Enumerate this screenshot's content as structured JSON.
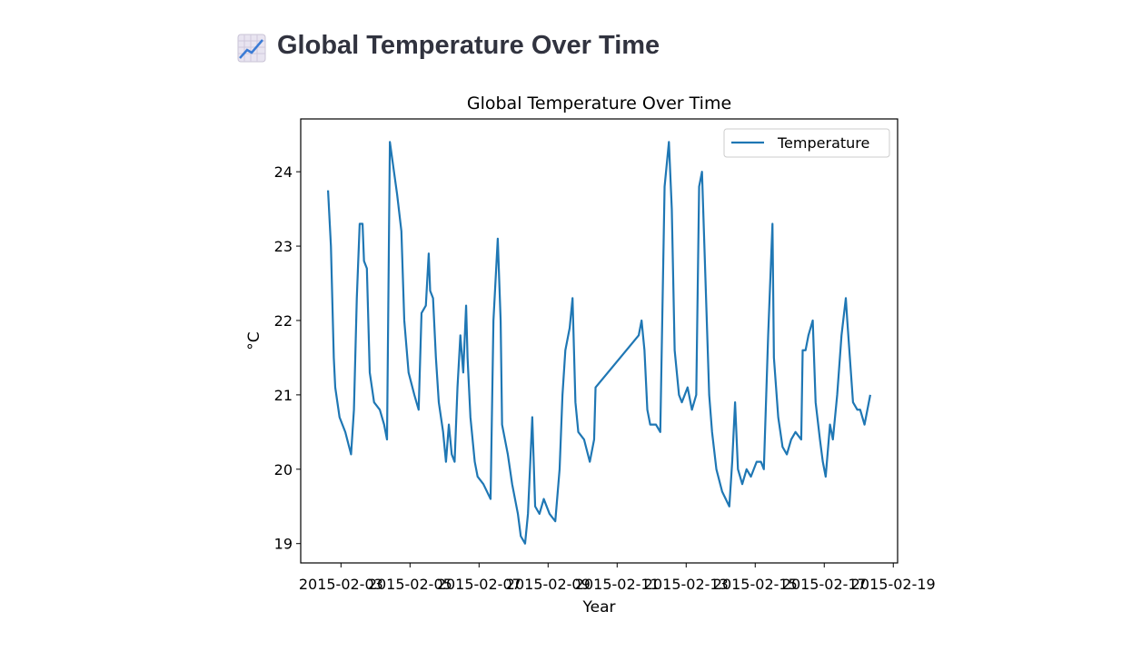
{
  "header": {
    "title": "Global Temperature Over Time"
  },
  "chart_data": {
    "type": "line",
    "title": "Global Temperature Over Time",
    "x_label": "Year",
    "y_label": "°C",
    "x": [
      "2015-02-02 15:00",
      "2015-02-02 17:00",
      "2015-02-02 19:00",
      "2015-02-02 20:00",
      "2015-02-02 23:00",
      "2015-02-03 03:00",
      "2015-02-03 07:00",
      "2015-02-03 09:00",
      "2015-02-03 11:00",
      "2015-02-03 13:00",
      "2015-02-03 15:00",
      "2015-02-03 16:00",
      "2015-02-03 18:00",
      "2015-02-03 20:00",
      "2015-02-03 23:00",
      "2015-02-04 03:00",
      "2015-02-04 06:00",
      "2015-02-04 08:00",
      "2015-02-04 10:00",
      "2015-02-04 15:00",
      "2015-02-04 18:00",
      "2015-02-04 20:00",
      "2015-02-04 23:00",
      "2015-02-05 03:00",
      "2015-02-05 06:00",
      "2015-02-05 08:00",
      "2015-02-05 11:00",
      "2015-02-05 13:00",
      "2015-02-05 14:00",
      "2015-02-05 16:00",
      "2015-02-05 18:00",
      "2015-02-05 20:00",
      "2015-02-05 23:00",
      "2015-02-06 01:00",
      "2015-02-06 03:00",
      "2015-02-06 05:00",
      "2015-02-06 07:00",
      "2015-02-06 09:00",
      "2015-02-06 11:00",
      "2015-02-06 13:00",
      "2015-02-06 15:00",
      "2015-02-06 16:00",
      "2015-02-06 18:00",
      "2015-02-06 21:00",
      "2015-02-06 23:00",
      "2015-02-07 03:00",
      "2015-02-07 08:00",
      "2015-02-07 10:00",
      "2015-02-07 13:00",
      "2015-02-07 15:00",
      "2015-02-07 16:00",
      "2015-02-07 20:00",
      "2015-02-07 23:00",
      "2015-02-08 03:00",
      "2015-02-08 05:00",
      "2015-02-08 08:00",
      "2015-02-08 10:00",
      "2015-02-08 13:00",
      "2015-02-08 15:00",
      "2015-02-08 18:00",
      "2015-02-08 21:00",
      "2015-02-09 01:00",
      "2015-02-09 05:00",
      "2015-02-09 08:00",
      "2015-02-09 10:00",
      "2015-02-09 12:00",
      "2015-02-09 15:00",
      "2015-02-09 17:00",
      "2015-02-09 19:00",
      "2015-02-09 21:00",
      "2015-02-10 01:00",
      "2015-02-10 05:00",
      "2015-02-10 08:00",
      "2015-02-10 09:00",
      "2015-02-11 15:00",
      "2015-02-11 17:00",
      "2015-02-11 19:00",
      "2015-02-11 21:00",
      "2015-02-11 23:00",
      "2015-02-12 03:00",
      "2015-02-12 06:00",
      "2015-02-12 09:00",
      "2015-02-12 12:00",
      "2015-02-12 14:00",
      "2015-02-12 16:00",
      "2015-02-12 19:00",
      "2015-02-12 21:00",
      "2015-02-13 01:00",
      "2015-02-13 04:00",
      "2015-02-13 07:00",
      "2015-02-13 09:00",
      "2015-02-13 11:00",
      "2015-02-13 13:00",
      "2015-02-13 16:00",
      "2015-02-13 18:00",
      "2015-02-13 21:00",
      "2015-02-14 01:00",
      "2015-02-14 06:00",
      "2015-02-14 08:00",
      "2015-02-14 10:00",
      "2015-02-14 12:00",
      "2015-02-14 15:00",
      "2015-02-14 18:00",
      "2015-02-14 21:00",
      "2015-02-15 01:00",
      "2015-02-15 04:00",
      "2015-02-15 06:00",
      "2015-02-15 09:00",
      "2015-02-15 11:00",
      "2015-02-15 12:00",
      "2015-02-15 13:00",
      "2015-02-15 16:00",
      "2015-02-15 19:00",
      "2015-02-15 22:00",
      "2015-02-16 01:00",
      "2015-02-16 04:00",
      "2015-02-16 08:00",
      "2015-02-16 09:00",
      "2015-02-16 11:00",
      "2015-02-16 13:00",
      "2015-02-16 16:00",
      "2015-02-16 18:00",
      "2015-02-16 21:00",
      "2015-02-16 23:00",
      "2015-02-17 01:00",
      "2015-02-17 04:00",
      "2015-02-17 06:00",
      "2015-02-17 09:00",
      "2015-02-17 12:00",
      "2015-02-17 15:00",
      "2015-02-17 16:00",
      "2015-02-17 20:00",
      "2015-02-17 23:00",
      "2015-02-18 01:00",
      "2015-02-18 04:00",
      "2015-02-18 06:00",
      "2015-02-18 08:00"
    ],
    "series": [
      {
        "name": "Temperature",
        "color": "#1f77b4",
        "values": [
          23.75,
          23.0,
          21.5,
          21.1,
          20.7,
          20.5,
          20.2,
          20.8,
          22.3,
          23.3,
          23.3,
          22.8,
          22.7,
          21.3,
          20.9,
          20.8,
          20.6,
          20.4,
          24.4,
          23.7,
          23.2,
          22.0,
          21.3,
          21.0,
          20.8,
          22.1,
          22.2,
          22.9,
          22.4,
          22.3,
          21.5,
          20.9,
          20.5,
          20.1,
          20.6,
          20.2,
          20.1,
          21.1,
          21.8,
          21.3,
          22.2,
          21.5,
          20.7,
          20.1,
          19.9,
          19.8,
          19.6,
          22.0,
          23.1,
          22.0,
          20.6,
          20.2,
          19.8,
          19.4,
          19.1,
          19.0,
          19.4,
          20.7,
          19.5,
          19.4,
          19.6,
          19.4,
          19.3,
          20.0,
          21.0,
          21.6,
          21.9,
          22.3,
          20.9,
          20.5,
          20.4,
          20.1,
          20.4,
          21.1,
          21.8,
          22.0,
          21.6,
          20.8,
          20.6,
          20.6,
          20.5,
          23.8,
          24.4,
          23.5,
          21.6,
          21.0,
          20.9,
          21.1,
          20.8,
          21.0,
          23.8,
          24.0,
          22.8,
          21.0,
          20.5,
          20.0,
          19.7,
          19.5,
          20.1,
          20.9,
          20.0,
          19.8,
          20.0,
          19.9,
          20.1,
          20.1,
          20.0,
          21.8,
          22.8,
          23.3,
          21.5,
          20.7,
          20.3,
          20.2,
          20.4,
          20.5,
          20.4,
          21.6,
          21.6,
          21.8,
          22.0,
          20.9,
          20.4,
          20.1,
          19.9,
          20.6,
          20.4,
          21.0,
          21.8,
          22.3,
          22.0,
          20.9,
          20.8,
          20.8,
          20.6,
          20.8,
          21.0
        ]
      }
    ],
    "xlim": [
      "2015-02-01 20:00",
      "2015-02-19 03:00"
    ],
    "xticks": [
      "2015-02-03",
      "2015-02-05",
      "2015-02-07",
      "2015-02-09",
      "2015-02-11",
      "2015-02-13",
      "2015-02-15",
      "2015-02-17",
      "2015-02-19"
    ],
    "ylim": [
      18.74,
      24.71
    ],
    "yticks": [
      19,
      20,
      21,
      22,
      23,
      24
    ],
    "legend": "upper right",
    "grid": false
  }
}
